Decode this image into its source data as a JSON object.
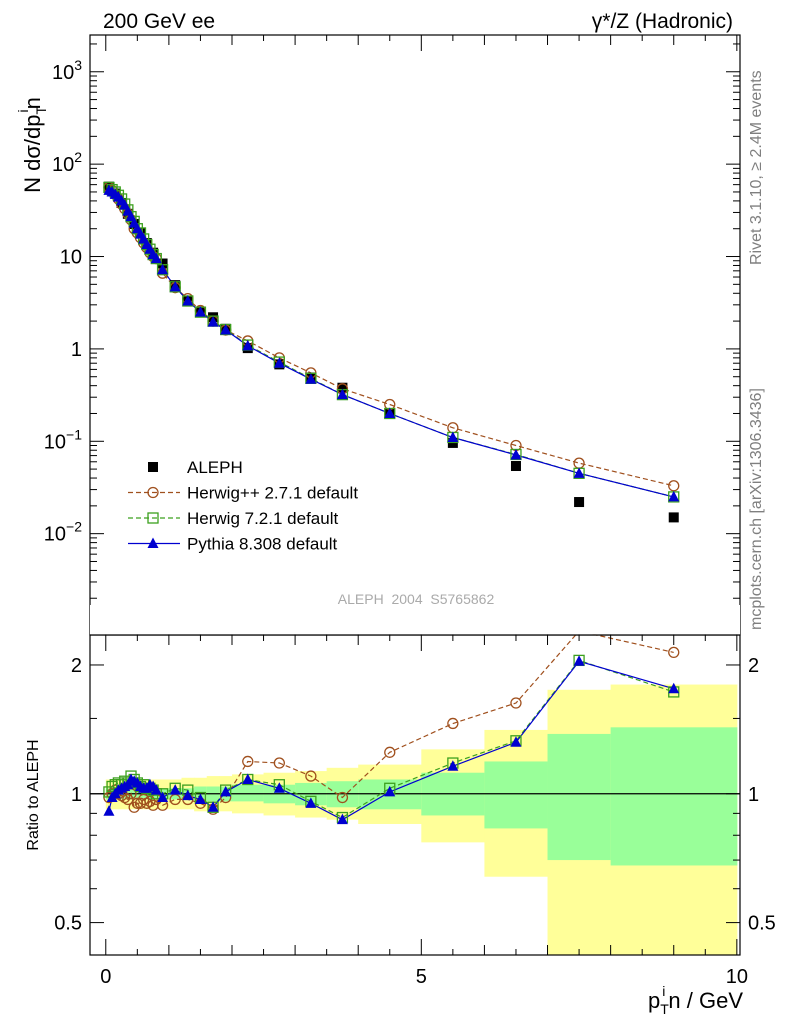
{
  "header": {
    "left": "200 GeV ee",
    "right": "γ*/Z (Hadronic)"
  },
  "side_labels": {
    "rivet": "Rivet 3.1.10, ≥ 2.4M events",
    "mcplots": "mcplots.cern.ch [arXiv:1306.3436]"
  },
  "watermark": "ALEPH_2004_S5765862",
  "colors": {
    "aleph": "#000000",
    "herwigpp": "#a0501e",
    "herwig7": "#3ca01e",
    "pythia": "#0000d0",
    "band_inner": "#99ff99",
    "band_outer": "#ffff99"
  },
  "chart_data": [
    {
      "type": "scatter",
      "panel": "main",
      "title": "",
      "ylabel_main": "N dσ/dp",
      "ylabel_sup": "i",
      "ylabel_sub": "T",
      "ylabel_tail": "n",
      "yscale": "log",
      "xlim": [
        -0.25,
        10.05
      ],
      "ylim": [
        0.0008,
        2500
      ],
      "yticks": [
        {
          "v": 0.01,
          "base": "10",
          "exp": "−2"
        },
        {
          "v": 0.1,
          "base": "10",
          "exp": "−1"
        },
        {
          "v": 1,
          "base": "1",
          "exp": ""
        },
        {
          "v": 10,
          "base": "10",
          "exp": ""
        },
        {
          "v": 100,
          "base": "10",
          "exp": "2"
        },
        {
          "v": 1000,
          "base": "10",
          "exp": "3"
        }
      ],
      "legend_position": "center-left",
      "legend": [
        {
          "label": "ALEPH",
          "key": "aleph",
          "marker": "square-filled"
        },
        {
          "label": "Herwig++ 2.7.1 default",
          "key": "herwigpp",
          "marker": "circle-open"
        },
        {
          "label": "Herwig 7.2.1 default",
          "key": "herwig7",
          "marker": "square-open"
        },
        {
          "label": "Pythia 8.308 default",
          "key": "pythia",
          "marker": "triangle-filled"
        }
      ],
      "series": [
        {
          "key": "aleph",
          "x": [
            0.05,
            0.15,
            0.25,
            0.35,
            0.45,
            0.55,
            0.65,
            0.75,
            0.9,
            1.1,
            1.3,
            1.5,
            1.7,
            1.9,
            2.25,
            2.75,
            3.25,
            3.75,
            4.5,
            5.5,
            6.5,
            7.5,
            9.0
          ],
          "y": [
            57,
            48,
            38,
            29,
            22.5,
            18,
            14,
            11,
            8.4,
            4.9,
            3.3,
            2.5,
            2.2,
            1.65,
            1.02,
            0.68,
            0.49,
            0.38,
            0.2,
            0.096,
            0.054,
            0.022,
            0.015
          ]
        },
        {
          "key": "herwigpp",
          "x": [
            0.05,
            0.1,
            0.15,
            0.2,
            0.25,
            0.3,
            0.35,
            0.4,
            0.45,
            0.5,
            0.55,
            0.6,
            0.65,
            0.7,
            0.75,
            0.8,
            0.9,
            1.1,
            1.3,
            1.5,
            1.7,
            1.9,
            2.25,
            2.75,
            3.25,
            3.75,
            4.5,
            5.5,
            6.5,
            7.5,
            9.0
          ],
          "y": [
            56,
            52,
            47,
            42,
            37,
            33,
            29,
            25,
            20,
            18,
            16,
            14,
            12.5,
            11,
            10,
            9.5,
            6.6,
            4.6,
            3.5,
            2.6,
            2.0,
            1.6,
            1.22,
            0.8,
            0.55,
            0.37,
            0.25,
            0.14,
            0.09,
            0.058,
            0.033
          ]
        },
        {
          "key": "herwig7",
          "x": [
            0.05,
            0.1,
            0.15,
            0.2,
            0.25,
            0.3,
            0.35,
            0.4,
            0.45,
            0.5,
            0.55,
            0.6,
            0.65,
            0.7,
            0.75,
            0.8,
            0.9,
            1.1,
            1.3,
            1.5,
            1.7,
            1.9,
            2.25,
            2.75,
            3.25,
            3.75,
            4.5,
            5.5,
            6.5,
            7.5,
            9.0
          ],
          "y": [
            56,
            53,
            50,
            46,
            42,
            37,
            32,
            27,
            24,
            20,
            18,
            15.5,
            13.5,
            12,
            10.5,
            9.5,
            7.2,
            4.7,
            3.3,
            2.5,
            2.0,
            1.62,
            1.1,
            0.72,
            0.48,
            0.32,
            0.2,
            0.11,
            0.072,
            0.045,
            0.025
          ]
        },
        {
          "key": "pythia",
          "x": [
            0.05,
            0.1,
            0.15,
            0.2,
            0.25,
            0.3,
            0.35,
            0.4,
            0.45,
            0.5,
            0.55,
            0.6,
            0.65,
            0.7,
            0.75,
            0.8,
            0.9,
            1.1,
            1.3,
            1.5,
            1.7,
            1.9,
            2.25,
            2.75,
            3.25,
            3.75,
            4.5,
            5.5,
            6.5,
            7.5,
            9.0
          ],
          "y": [
            52,
            50,
            47,
            44,
            40,
            36,
            31,
            27,
            23,
            20,
            17.5,
            15.5,
            13.5,
            12,
            10.5,
            9.5,
            7.2,
            4.7,
            3.3,
            2.5,
            1.95,
            1.6,
            1.08,
            0.7,
            0.47,
            0.32,
            0.2,
            0.11,
            0.071,
            0.045,
            0.025
          ]
        }
      ]
    },
    {
      "type": "line",
      "panel": "ratio",
      "ylabel": "Ratio to ALEPH",
      "xlabel_main": "p",
      "xlabel_sup": "i",
      "xlabel_sub": "T",
      "xlabel_tail": "n / GeV",
      "yscale": "log",
      "xlim": [
        -0.25,
        10.05
      ],
      "ylim": [
        0.42,
        2.35
      ],
      "xticks": [
        0,
        5,
        10
      ],
      "yticks": [
        0.5,
        1,
        2
      ],
      "reference_line": 1,
      "bands": [
        {
          "x0": 0.0,
          "x1": 0.1,
          "outer": [
            0.92,
            1.08
          ],
          "inner": [
            0.97,
            1.03
          ]
        },
        {
          "x0": 0.1,
          "x1": 0.2,
          "outer": [
            0.92,
            1.08
          ],
          "inner": [
            0.97,
            1.03
          ]
        },
        {
          "x0": 0.2,
          "x1": 0.3,
          "outer": [
            0.92,
            1.08
          ],
          "inner": [
            0.97,
            1.03
          ]
        },
        {
          "x0": 0.3,
          "x1": 0.4,
          "outer": [
            0.92,
            1.08
          ],
          "inner": [
            0.97,
            1.03
          ]
        },
        {
          "x0": 0.4,
          "x1": 0.5,
          "outer": [
            0.92,
            1.08
          ],
          "inner": [
            0.97,
            1.03
          ]
        },
        {
          "x0": 0.5,
          "x1": 0.6,
          "outer": [
            0.92,
            1.08
          ],
          "inner": [
            0.97,
            1.03
          ]
        },
        {
          "x0": 0.6,
          "x1": 0.7,
          "outer": [
            0.92,
            1.08
          ],
          "inner": [
            0.97,
            1.03
          ]
        },
        {
          "x0": 0.7,
          "x1": 0.8,
          "outer": [
            0.92,
            1.08
          ],
          "inner": [
            0.97,
            1.03
          ]
        },
        {
          "x0": 0.8,
          "x1": 1.0,
          "outer": [
            0.92,
            1.08
          ],
          "inner": [
            0.97,
            1.03
          ]
        },
        {
          "x0": 1.0,
          "x1": 1.2,
          "outer": [
            0.92,
            1.08
          ],
          "inner": [
            0.97,
            1.03
          ]
        },
        {
          "x0": 1.2,
          "x1": 1.4,
          "outer": [
            0.92,
            1.09
          ],
          "inner": [
            0.97,
            1.03
          ]
        },
        {
          "x0": 1.4,
          "x1": 1.6,
          "outer": [
            0.91,
            1.09
          ],
          "inner": [
            0.96,
            1.04
          ]
        },
        {
          "x0": 1.6,
          "x1": 1.8,
          "outer": [
            0.91,
            1.1
          ],
          "inner": [
            0.96,
            1.04
          ]
        },
        {
          "x0": 1.8,
          "x1": 2.0,
          "outer": [
            0.91,
            1.1
          ],
          "inner": [
            0.96,
            1.04
          ]
        },
        {
          "x0": 2.0,
          "x1": 2.5,
          "outer": [
            0.9,
            1.11
          ],
          "inner": [
            0.96,
            1.05
          ]
        },
        {
          "x0": 2.5,
          "x1": 3.0,
          "outer": [
            0.89,
            1.12
          ],
          "inner": [
            0.95,
            1.05
          ]
        },
        {
          "x0": 3.0,
          "x1": 3.5,
          "outer": [
            0.88,
            1.13
          ],
          "inner": [
            0.94,
            1.06
          ]
        },
        {
          "x0": 3.5,
          "x1": 4.0,
          "outer": [
            0.87,
            1.15
          ],
          "inner": [
            0.93,
            1.07
          ]
        },
        {
          "x0": 4.0,
          "x1": 5.0,
          "outer": [
            0.85,
            1.17
          ],
          "inner": [
            0.92,
            1.08
          ]
        },
        {
          "x0": 5.0,
          "x1": 6.0,
          "outer": [
            0.77,
            1.27
          ],
          "inner": [
            0.89,
            1.12
          ]
        },
        {
          "x0": 6.0,
          "x1": 7.0,
          "outer": [
            0.64,
            1.41
          ],
          "inner": [
            0.83,
            1.19
          ]
        },
        {
          "x0": 7.0,
          "x1": 8.0,
          "outer": [
            0.3,
            1.75
          ],
          "inner": [
            0.7,
            1.38
          ]
        },
        {
          "x0": 8.0,
          "x1": 10.0,
          "outer": [
            0.3,
            1.8
          ],
          "inner": [
            0.68,
            1.43
          ]
        }
      ],
      "series": [
        {
          "key": "herwigpp",
          "x": [
            0.05,
            0.1,
            0.15,
            0.2,
            0.25,
            0.3,
            0.35,
            0.4,
            0.45,
            0.5,
            0.55,
            0.6,
            0.65,
            0.7,
            0.75,
            0.8,
            0.9,
            1.1,
            1.3,
            1.5,
            1.7,
            1.9,
            2.25,
            2.75,
            3.25,
            3.75,
            4.5,
            5.5,
            6.5,
            7.5,
            9.0
          ],
          "y": [
            0.98,
            1.0,
            1.02,
            1.0,
            0.99,
            0.98,
            0.97,
            1.0,
            0.93,
            0.95,
            0.95,
            0.97,
            0.95,
            0.96,
            0.94,
            0.97,
            0.94,
            0.97,
            0.97,
            0.95,
            0.92,
            0.98,
            1.19,
            1.18,
            1.1,
            0.98,
            1.25,
            1.46,
            1.63,
            2.4,
            2.14
          ]
        },
        {
          "key": "herwig7",
          "x": [
            0.05,
            0.1,
            0.15,
            0.2,
            0.25,
            0.3,
            0.35,
            0.4,
            0.45,
            0.5,
            0.55,
            0.6,
            0.65,
            0.7,
            0.75,
            0.8,
            0.9,
            1.1,
            1.3,
            1.5,
            1.7,
            1.9,
            2.25,
            2.75,
            3.25,
            3.75,
            4.5,
            5.5,
            6.5,
            7.5,
            9.0
          ],
          "y": [
            1.01,
            1.04,
            1.05,
            1.06,
            1.05,
            1.07,
            1.06,
            1.1,
            1.08,
            1.06,
            1.04,
            1.05,
            1.03,
            1.03,
            1.02,
            1.0,
            1.0,
            1.03,
            1.02,
            0.98,
            0.93,
            1.02,
            1.08,
            1.05,
            0.96,
            0.88,
            1.03,
            1.18,
            1.33,
            2.05,
            1.73
          ]
        },
        {
          "key": "pythia",
          "x": [
            0.05,
            0.1,
            0.15,
            0.2,
            0.25,
            0.3,
            0.35,
            0.4,
            0.45,
            0.5,
            0.55,
            0.6,
            0.65,
            0.7,
            0.75,
            0.8,
            0.9,
            1.1,
            1.3,
            1.5,
            1.7,
            1.9,
            2.25,
            2.75,
            3.25,
            3.75,
            4.5,
            5.5,
            6.5,
            7.5,
            9.0
          ],
          "y": [
            0.91,
            0.98,
            1.0,
            1.02,
            1.03,
            1.04,
            1.05,
            1.08,
            1.07,
            1.06,
            1.04,
            1.03,
            1.03,
            1.05,
            1.04,
            1.02,
            0.98,
            1.02,
            0.99,
            0.97,
            0.93,
            1.01,
            1.08,
            1.03,
            0.95,
            0.87,
            1.01,
            1.16,
            1.32,
            2.04,
            1.76
          ]
        }
      ]
    }
  ]
}
